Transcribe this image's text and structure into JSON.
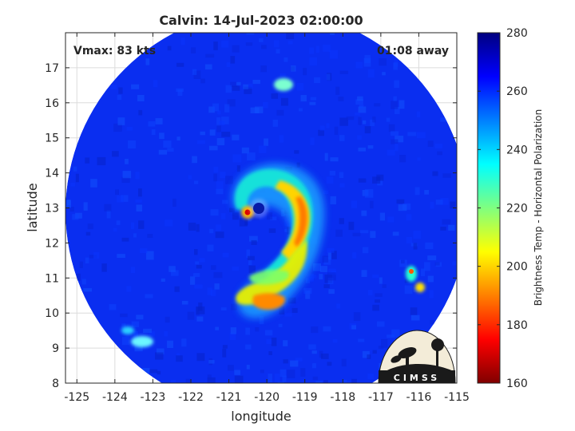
{
  "title": "Calvin: 14-Jul-2023 02:00:00",
  "vmax_label": "Vmax: 83 kts",
  "time_label": "01:08 away",
  "xlabel": "longitude",
  "ylabel": "latitude",
  "colorbar_label": "Brightness Temp - Horizontal Polarization",
  "logo_text": "CIMSS",
  "x_ticks": [
    -125,
    -124,
    -123,
    -122,
    -121,
    -120,
    -119,
    -118,
    -117,
    -116,
    -115
  ],
  "y_ticks": [
    8,
    9,
    10,
    11,
    12,
    13,
    14,
    15,
    16,
    17
  ],
  "colorbar_ticks": [
    160,
    180,
    200,
    220,
    240,
    260,
    280
  ],
  "map_data": {
    "type": "heatmap",
    "xlim": [
      -125.3,
      -115.0
    ],
    "ylim": [
      8.0,
      18.0
    ],
    "clim": [
      160,
      280
    ],
    "grid": true,
    "colormap": "jet",
    "swath_center": [
      -120.0,
      12.9
    ],
    "swath_radius_deg": 5.3,
    "background_tb": 262,
    "eye": {
      "lon": -120.0,
      "lat": 12.95,
      "tb": 268
    },
    "features": [
      {
        "lon": -119.1,
        "lat": 12.95,
        "tb": 193
      },
      {
        "lon": -120.3,
        "lat": 12.85,
        "tb": 188
      },
      {
        "lon": -119.3,
        "lat": 11.6,
        "tb": 210
      },
      {
        "lon": -120.2,
        "lat": 10.4,
        "tb": 195
      },
      {
        "lon": -119.9,
        "lat": 11.0,
        "tb": 212
      },
      {
        "lon": -120.6,
        "lat": 13.6,
        "tb": 222
      },
      {
        "lon": -116.2,
        "lat": 11.1,
        "tb": 198
      },
      {
        "lon": -116.0,
        "lat": 10.7,
        "tb": 215
      },
      {
        "lon": -120.0,
        "lat": 16.5,
        "tb": 222
      },
      {
        "lon": -123.4,
        "lat": 9.1,
        "tb": 228
      }
    ]
  },
  "colors": {
    "background_blue": "#0a2ef0",
    "axis": "#262626",
    "grid": "#dcdcdc"
  }
}
